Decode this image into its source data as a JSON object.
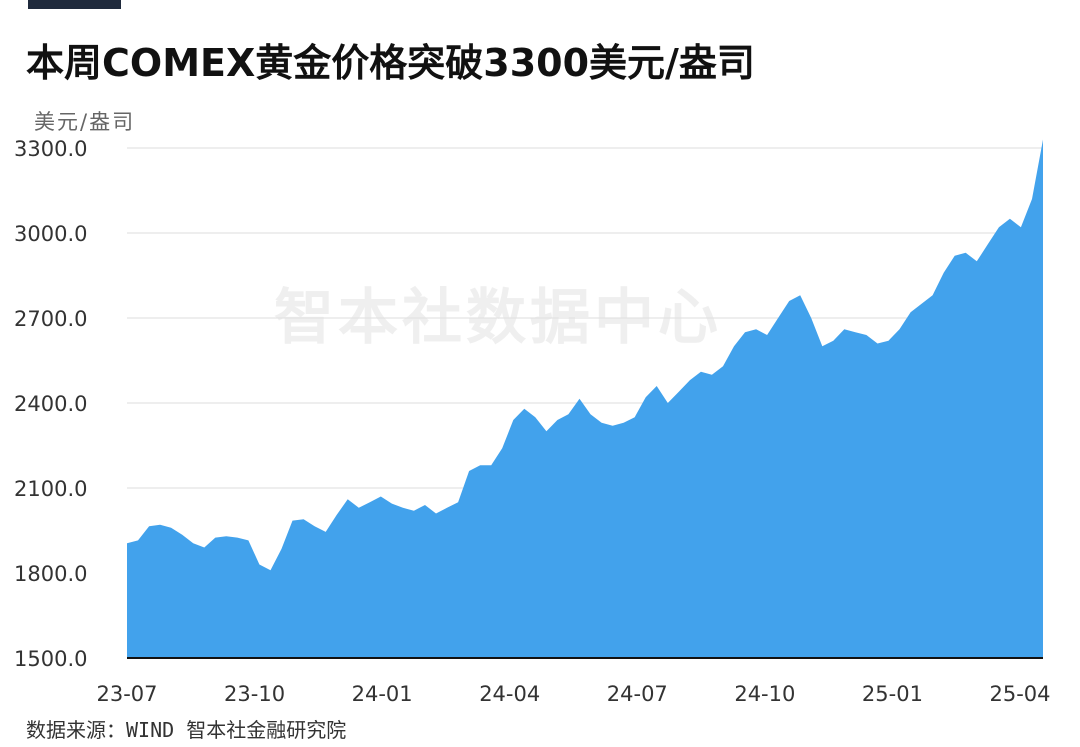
{
  "header": {
    "title": "本周COMEX黄金价格突破3300美元/盎司"
  },
  "chart_data": {
    "type": "area",
    "title": "本周COMEX黄金价格突破3300美元/盎司",
    "ylabel": "美元/盎司",
    "xlabel": "",
    "ylim": [
      1500,
      3300
    ],
    "yticks": [
      "1500.0",
      "1800.0",
      "2100.0",
      "2400.0",
      "2700.0",
      "3000.0",
      "3300.0"
    ],
    "xticks": [
      "23-07",
      "23-10",
      "24-01",
      "24-04",
      "24-07",
      "24-10",
      "25-01",
      "25-04"
    ],
    "grid": true,
    "color": "#42a2ec",
    "series": [
      {
        "x": [
          "23-07",
          "23-07",
          "23-07",
          "23-08",
          "23-08",
          "23-08",
          "23-08",
          "23-08",
          "23-09",
          "23-09",
          "23-09",
          "23-09",
          "23-10",
          "23-10",
          "23-10",
          "23-10",
          "23-11",
          "23-11",
          "23-11",
          "23-11",
          "23-12",
          "23-12",
          "23-12",
          "23-12",
          "24-01",
          "24-01",
          "24-01",
          "24-02",
          "24-02",
          "24-02",
          "24-02",
          "24-03",
          "24-03",
          "24-03",
          "24-03",
          "24-04",
          "24-04",
          "24-04",
          "24-04",
          "24-05",
          "24-05",
          "24-05",
          "24-05",
          "24-06",
          "24-06",
          "24-06",
          "24-06",
          "24-07",
          "24-07",
          "24-07",
          "24-07",
          "24-08",
          "24-08",
          "24-08",
          "24-09",
          "24-09",
          "24-09",
          "24-09",
          "24-10",
          "24-10",
          "24-10",
          "24-10",
          "24-11",
          "24-11",
          "24-11",
          "24-11",
          "24-12",
          "24-12",
          "24-12",
          "24-12",
          "25-01",
          "25-01",
          "25-01",
          "25-02",
          "25-02",
          "25-02",
          "25-02",
          "25-03",
          "25-03",
          "25-03",
          "25-03",
          "25-04",
          "25-04",
          "25-04"
        ],
        "values": [
          1905,
          1915,
          1965,
          1970,
          1960,
          1935,
          1905,
          1890,
          1925,
          1930,
          1925,
          1915,
          1830,
          1810,
          1885,
          1985,
          1990,
          1965,
          1945,
          2005,
          2060,
          2030,
          2050,
          2070,
          2045,
          2030,
          2020,
          2040,
          2010,
          2030,
          2050,
          2160,
          2180,
          2180,
          2240,
          2340,
          2380,
          2350,
          2300,
          2340,
          2360,
          2415,
          2360,
          2330,
          2320,
          2330,
          2350,
          2420,
          2460,
          2400,
          2440,
          2480,
          2510,
          2500,
          2530,
          2600,
          2650,
          2660,
          2640,
          2700,
          2760,
          2780,
          2700,
          2600,
          2620,
          2660,
          2650,
          2640,
          2610,
          2620,
          2660,
          2720,
          2750,
          2780,
          2860,
          2920,
          2930,
          2900,
          2960,
          3020,
          3050,
          3020,
          3120,
          3330
        ]
      }
    ]
  },
  "watermark": "智本社数据中心",
  "footer": {
    "source": "数据来源：WIND 智本社金融研究院"
  }
}
